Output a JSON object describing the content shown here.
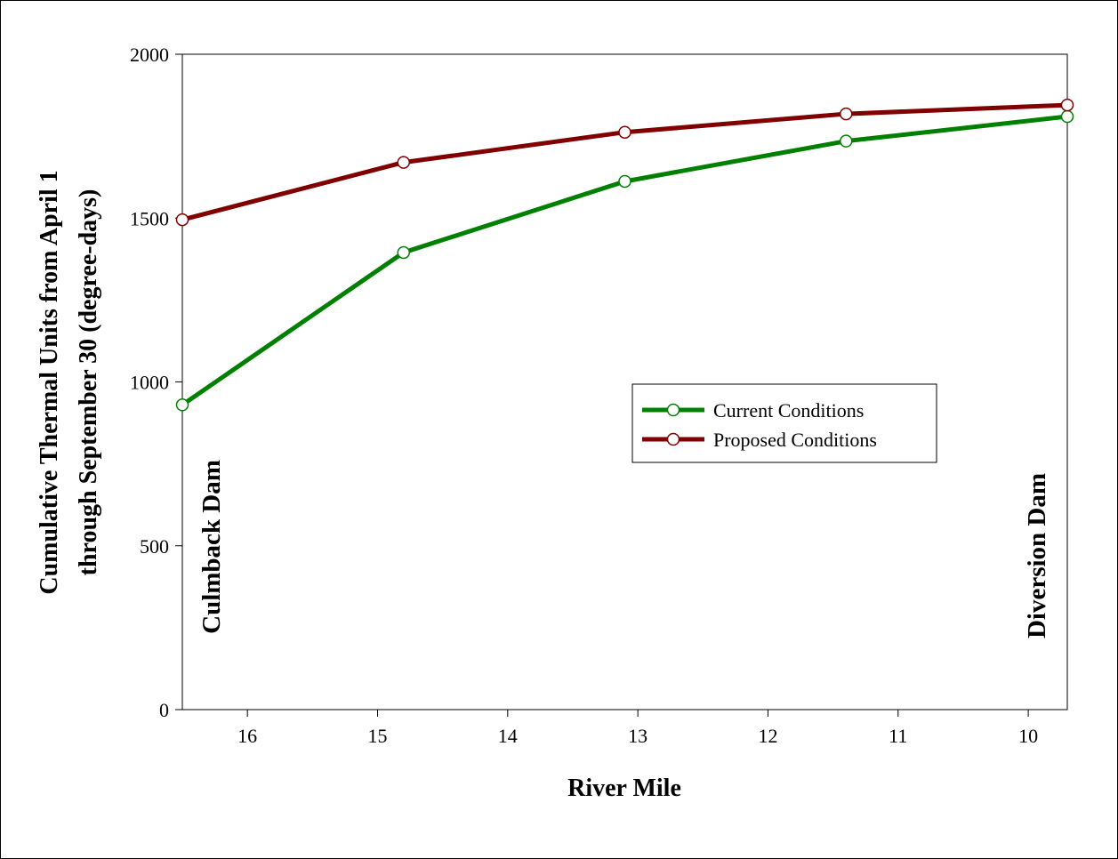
{
  "chart_data": {
    "type": "line",
    "xlabel": "River Mile",
    "ylabel_line1": "Cumulative Thermal Units from April 1",
    "ylabel_line2": "through September 30 (degree-days)",
    "xlim": [
      16.5,
      9.7
    ],
    "ylim": [
      0,
      2000
    ],
    "x_reversed": true,
    "x_ticks": [
      16,
      15,
      14,
      13,
      12,
      11,
      10
    ],
    "y_ticks": [
      0,
      500,
      1000,
      1500,
      2000
    ],
    "x_tick_labels": [
      "16",
      "15",
      "14",
      "13",
      "12",
      "11",
      "10"
    ],
    "y_tick_labels": [
      "0",
      "500",
      "1000",
      "1500",
      "2000"
    ],
    "grid": false,
    "legend_position": "center-right",
    "series": [
      {
        "name": "Current Conditions",
        "color": "#008000",
        "marker": "open-circle",
        "x": [
          16.5,
          14.8,
          13.1,
          11.4,
          9.7
        ],
        "y": [
          930,
          1395,
          1612,
          1735,
          1810
        ]
      },
      {
        "name": "Proposed Conditions",
        "color": "#800000",
        "marker": "open-circle",
        "x": [
          16.5,
          14.8,
          13.1,
          11.4,
          9.7
        ],
        "y": [
          1495,
          1670,
          1762,
          1818,
          1845
        ]
      }
    ],
    "annotations": [
      {
        "text": "Culmback Dam",
        "position": "left"
      },
      {
        "text": "Diversion Dam",
        "position": "right"
      }
    ]
  }
}
